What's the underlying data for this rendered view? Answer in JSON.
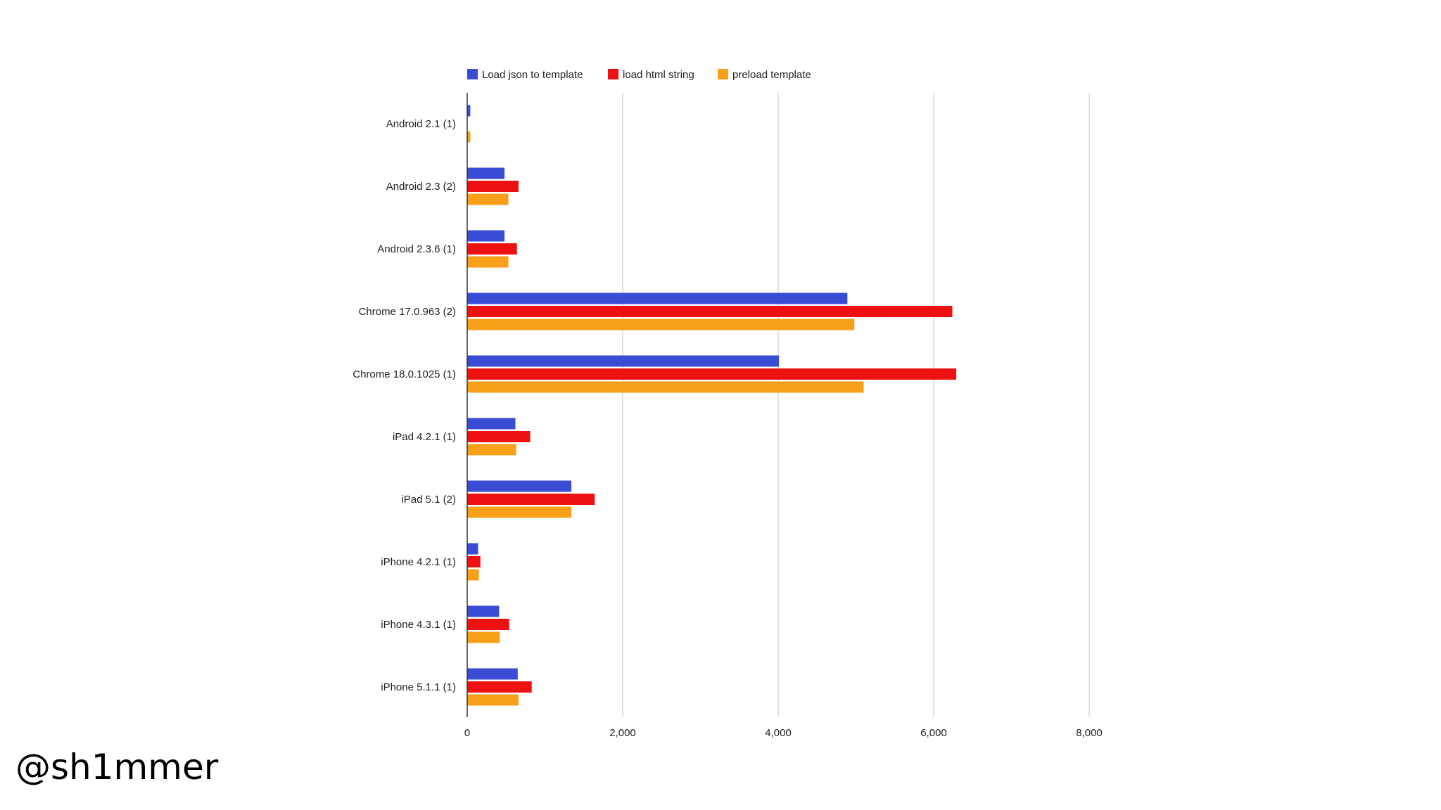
{
  "credit": "@sh1mmer",
  "chart_data": {
    "type": "bar",
    "orientation": "horizontal",
    "legend_position": "top",
    "grid": true,
    "xlim": [
      0,
      8000
    ],
    "x_ticks": [
      "0",
      "2,000",
      "4,000",
      "6,000",
      "8,000"
    ],
    "x_tick_values": [
      0,
      2000,
      4000,
      6000,
      8000
    ],
    "categories": [
      "Android 2.1 (1)",
      "Android 2.3 (2)",
      "Android 2.3.6 (1)",
      "Chrome 17.0.963 (2)",
      "Chrome 18.0.1025 (1)",
      "iPad 4.2.1 (1)",
      "iPad 5.1 (2)",
      "iPhone 4.2.1 (1)",
      "iPhone 4.3.1 (1)",
      "iPhone 5.1.1 (1)"
    ],
    "series": [
      {
        "name": "Load json to template",
        "color": "#3b4cd4",
        "values": [
          40,
          480,
          480,
          4890,
          4010,
          620,
          1340,
          140,
          410,
          650
        ]
      },
      {
        "name": "load html string",
        "color": "#ee1111",
        "values": [
          0,
          660,
          640,
          6240,
          6290,
          810,
          1640,
          170,
          540,
          830
        ]
      },
      {
        "name": "preload template",
        "color": "#f9a01b",
        "values": [
          40,
          530,
          530,
          4980,
          5100,
          630,
          1340,
          150,
          420,
          660
        ]
      }
    ]
  }
}
